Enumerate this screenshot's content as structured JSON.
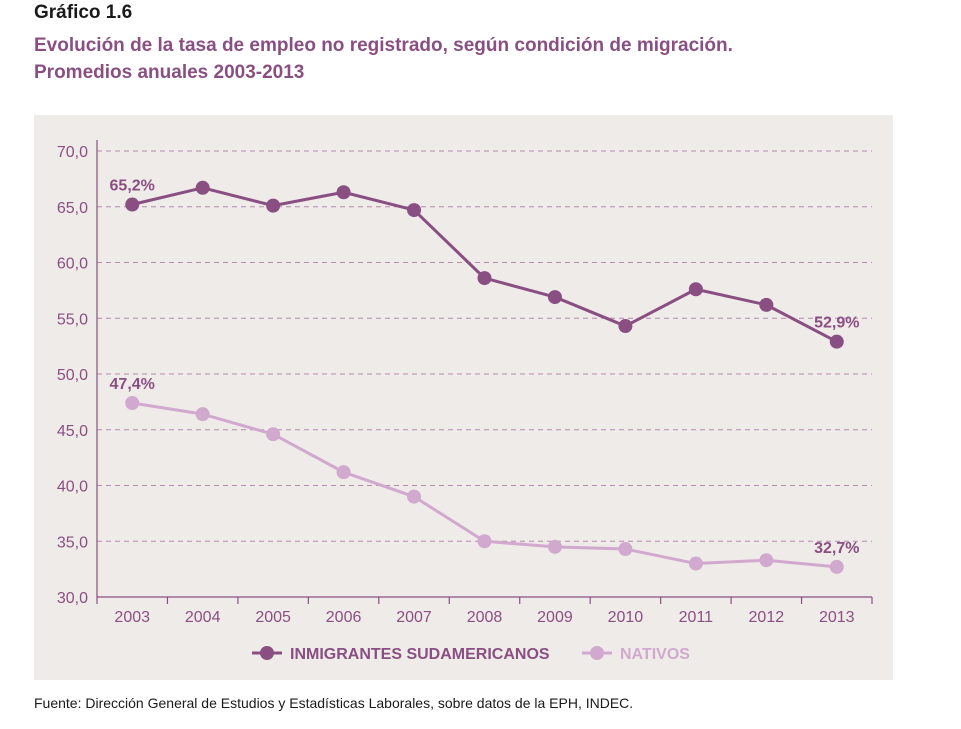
{
  "figure": {
    "label": "Gráfico 1.6",
    "title_line1": "Evolución de la tasa de empleo no registrado, según condición de migración.",
    "title_line2": "Promedios anuales 2003-2013",
    "source": "Fuente: Dirección General de Estudios y Estadísticas Laborales, sobre datos de la EPH, INDEC."
  },
  "chart_data": {
    "type": "line",
    "title": "Evolución de la tasa de empleo no registrado, según condición de migración. Promedios anuales 2003-2013",
    "x": [
      "2003",
      "2004",
      "2005",
      "2006",
      "2007",
      "2008",
      "2009",
      "2010",
      "2011",
      "2012",
      "2013"
    ],
    "y_ticks": [
      "30,0",
      "35,0",
      "40,0",
      "45,0",
      "50,0",
      "55,0",
      "60,0",
      "65,0",
      "70,0"
    ],
    "ylim": [
      30,
      70
    ],
    "grid": "horizontal-dashed",
    "legend_position": "bottom",
    "series": [
      {
        "name": "INMIGRANTES SUDAMERICANOS",
        "color": "#8a4f82",
        "values": [
          65.2,
          66.7,
          65.1,
          66.3,
          64.7,
          58.6,
          56.9,
          54.3,
          57.6,
          56.2,
          52.9
        ],
        "labels": [
          {
            "index": 0,
            "text": "65,2%"
          },
          {
            "index": 10,
            "text": "52,9%"
          }
        ]
      },
      {
        "name": "NATIVOS",
        "color": "#d1a9cf",
        "values": [
          47.4,
          46.4,
          44.6,
          41.2,
          39.0,
          35.0,
          34.5,
          34.3,
          33.0,
          33.3,
          32.7
        ],
        "labels": [
          {
            "index": 0,
            "text": "47,4%"
          },
          {
            "index": 10,
            "text": "32,7%"
          }
        ]
      }
    ]
  }
}
